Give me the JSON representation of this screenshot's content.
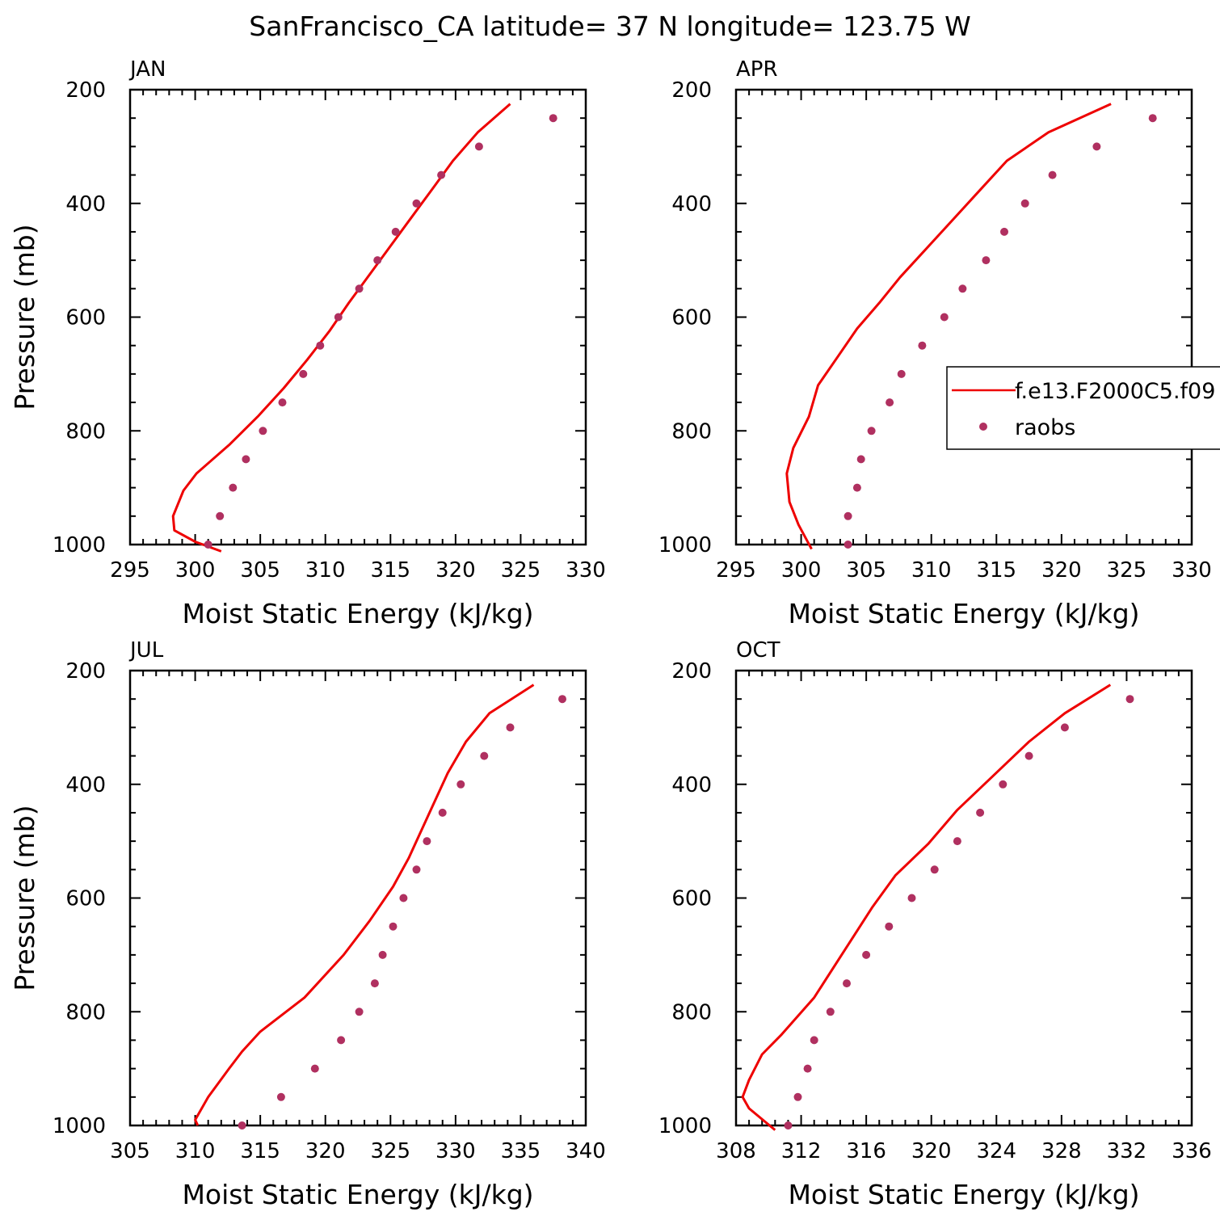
{
  "title": "SanFrancisco_CA  latitude= 37 N longitude= 123.75 W",
  "colors": {
    "model": "#ee0000",
    "obs": "#b03060",
    "axis": "#000000"
  },
  "legend": {
    "model_label": "f.e13.F2000C5.f09",
    "obs_label": "raobs",
    "location": "right-center of APR panel"
  },
  "chart_data": [
    {
      "type": "line+scatter",
      "panel": "JAN",
      "xlabel": "Moist Static Energy (kJ/kg)",
      "ylabel": "Pressure (mb)",
      "xlim": [
        295,
        330
      ],
      "xticks": [
        295,
        300,
        305,
        310,
        315,
        320,
        325,
        330
      ],
      "ylim": [
        1000,
        200
      ],
      "yticks": [
        200,
        400,
        600,
        800,
        1000
      ],
      "model": [
        [
          324.2,
          225
        ],
        [
          321.7,
          275
        ],
        [
          319.8,
          325
        ],
        [
          318.2,
          375
        ],
        [
          316.6,
          425
        ],
        [
          315.0,
          475
        ],
        [
          313.4,
          525
        ],
        [
          311.8,
          575
        ],
        [
          310.3,
          625
        ],
        [
          308.6,
          675
        ],
        [
          306.8,
          725
        ],
        [
          304.8,
          775
        ],
        [
          302.6,
          825
        ],
        [
          300.1,
          875
        ],
        [
          299.1,
          905
        ],
        [
          298.3,
          950
        ],
        [
          298.4,
          975
        ],
        [
          300.0,
          995
        ],
        [
          302.0,
          1012
        ]
      ],
      "obs": [
        [
          327.5,
          250
        ],
        [
          321.8,
          300
        ],
        [
          318.9,
          350
        ],
        [
          317.0,
          400
        ],
        [
          315.4,
          450
        ],
        [
          314.0,
          500
        ],
        [
          312.6,
          550
        ],
        [
          311.0,
          600
        ],
        [
          309.6,
          650
        ],
        [
          308.3,
          700
        ],
        [
          306.7,
          750
        ],
        [
          305.2,
          800
        ],
        [
          303.9,
          850
        ],
        [
          302.9,
          900
        ],
        [
          301.9,
          950
        ],
        [
          301.0,
          1000
        ]
      ]
    },
    {
      "type": "line+scatter",
      "panel": "APR",
      "xlabel": "Moist Static Energy (kJ/kg)",
      "ylabel": "",
      "xlim": [
        295,
        330
      ],
      "xticks": [
        295,
        300,
        305,
        310,
        315,
        320,
        325,
        330
      ],
      "ylim": [
        1000,
        200
      ],
      "yticks": [
        200,
        400,
        600,
        800,
        1000
      ],
      "model": [
        [
          323.8,
          225
        ],
        [
          319.0,
          275
        ],
        [
          315.8,
          325
        ],
        [
          313.6,
          380
        ],
        [
          311.6,
          430
        ],
        [
          309.6,
          480
        ],
        [
          307.6,
          530
        ],
        [
          306.0,
          575
        ],
        [
          304.3,
          620
        ],
        [
          302.8,
          670
        ],
        [
          301.3,
          720
        ],
        [
          300.6,
          775
        ],
        [
          299.4,
          830
        ],
        [
          298.9,
          875
        ],
        [
          299.1,
          925
        ],
        [
          299.8,
          965
        ],
        [
          300.8,
          1008
        ]
      ],
      "obs": [
        [
          327.0,
          250
        ],
        [
          322.7,
          300
        ],
        [
          319.3,
          350
        ],
        [
          317.2,
          400
        ],
        [
          315.6,
          450
        ],
        [
          314.2,
          500
        ],
        [
          312.4,
          550
        ],
        [
          311.0,
          600
        ],
        [
          309.3,
          650
        ],
        [
          307.7,
          700
        ],
        [
          306.8,
          750
        ],
        [
          305.4,
          800
        ],
        [
          304.6,
          850
        ],
        [
          304.3,
          900
        ],
        [
          303.6,
          950
        ],
        [
          303.6,
          1000
        ]
      ]
    },
    {
      "type": "line+scatter",
      "panel": "JUL",
      "xlabel": "Moist Static Energy (kJ/kg)",
      "ylabel": "Pressure (mb)",
      "xlim": [
        305,
        340
      ],
      "xticks": [
        305,
        310,
        315,
        320,
        325,
        330,
        335,
        340
      ],
      "ylim": [
        1000,
        200
      ],
      "yticks": [
        200,
        400,
        600,
        800,
        1000
      ],
      "model": [
        [
          336.0,
          225
        ],
        [
          332.6,
          275
        ],
        [
          330.8,
          325
        ],
        [
          329.4,
          380
        ],
        [
          328.0,
          450
        ],
        [
          326.4,
          530
        ],
        [
          325.2,
          580
        ],
        [
          323.4,
          640
        ],
        [
          321.4,
          700
        ],
        [
          318.4,
          775
        ],
        [
          315.0,
          835
        ],
        [
          313.6,
          870
        ],
        [
          312.6,
          900
        ],
        [
          311.0,
          950
        ],
        [
          310.0,
          990
        ],
        [
          310.2,
          1000
        ]
      ],
      "obs": [
        [
          338.2,
          250
        ],
        [
          334.2,
          300
        ],
        [
          332.2,
          350
        ],
        [
          330.4,
          400
        ],
        [
          329.0,
          450
        ],
        [
          327.8,
          500
        ],
        [
          327.0,
          550
        ],
        [
          326.0,
          600
        ],
        [
          325.2,
          650
        ],
        [
          324.4,
          700
        ],
        [
          323.8,
          750
        ],
        [
          322.6,
          800
        ],
        [
          321.2,
          850
        ],
        [
          319.2,
          900
        ],
        [
          316.6,
          950
        ],
        [
          313.6,
          1000
        ]
      ]
    },
    {
      "type": "line+scatter",
      "panel": "OCT",
      "xlabel": "Moist Static Energy (kJ/kg)",
      "ylabel": "",
      "xlim": [
        308,
        336
      ],
      "xticks": [
        308,
        312,
        316,
        320,
        324,
        328,
        332,
        336
      ],
      "ylim": [
        1000,
        200
      ],
      "yticks": [
        200,
        400,
        600,
        800,
        1000
      ],
      "model": [
        [
          331.0,
          225
        ],
        [
          328.2,
          275
        ],
        [
          326.0,
          325
        ],
        [
          323.8,
          385
        ],
        [
          321.6,
          445
        ],
        [
          319.8,
          505
        ],
        [
          317.8,
          560
        ],
        [
          316.4,
          615
        ],
        [
          314.6,
          695
        ],
        [
          312.8,
          775
        ],
        [
          310.8,
          840
        ],
        [
          309.6,
          875
        ],
        [
          308.8,
          920
        ],
        [
          308.4,
          950
        ],
        [
          308.8,
          970
        ],
        [
          310.4,
          1008
        ]
      ],
      "obs": [
        [
          332.2,
          250
        ],
        [
          328.2,
          300
        ],
        [
          326.0,
          350
        ],
        [
          324.4,
          400
        ],
        [
          323.0,
          450
        ],
        [
          321.6,
          500
        ],
        [
          320.2,
          550
        ],
        [
          318.8,
          600
        ],
        [
          317.4,
          650
        ],
        [
          316.0,
          700
        ],
        [
          314.8,
          750
        ],
        [
          313.8,
          800
        ],
        [
          312.8,
          850
        ],
        [
          312.4,
          900
        ],
        [
          311.8,
          950
        ],
        [
          311.2,
          1000
        ]
      ]
    }
  ]
}
